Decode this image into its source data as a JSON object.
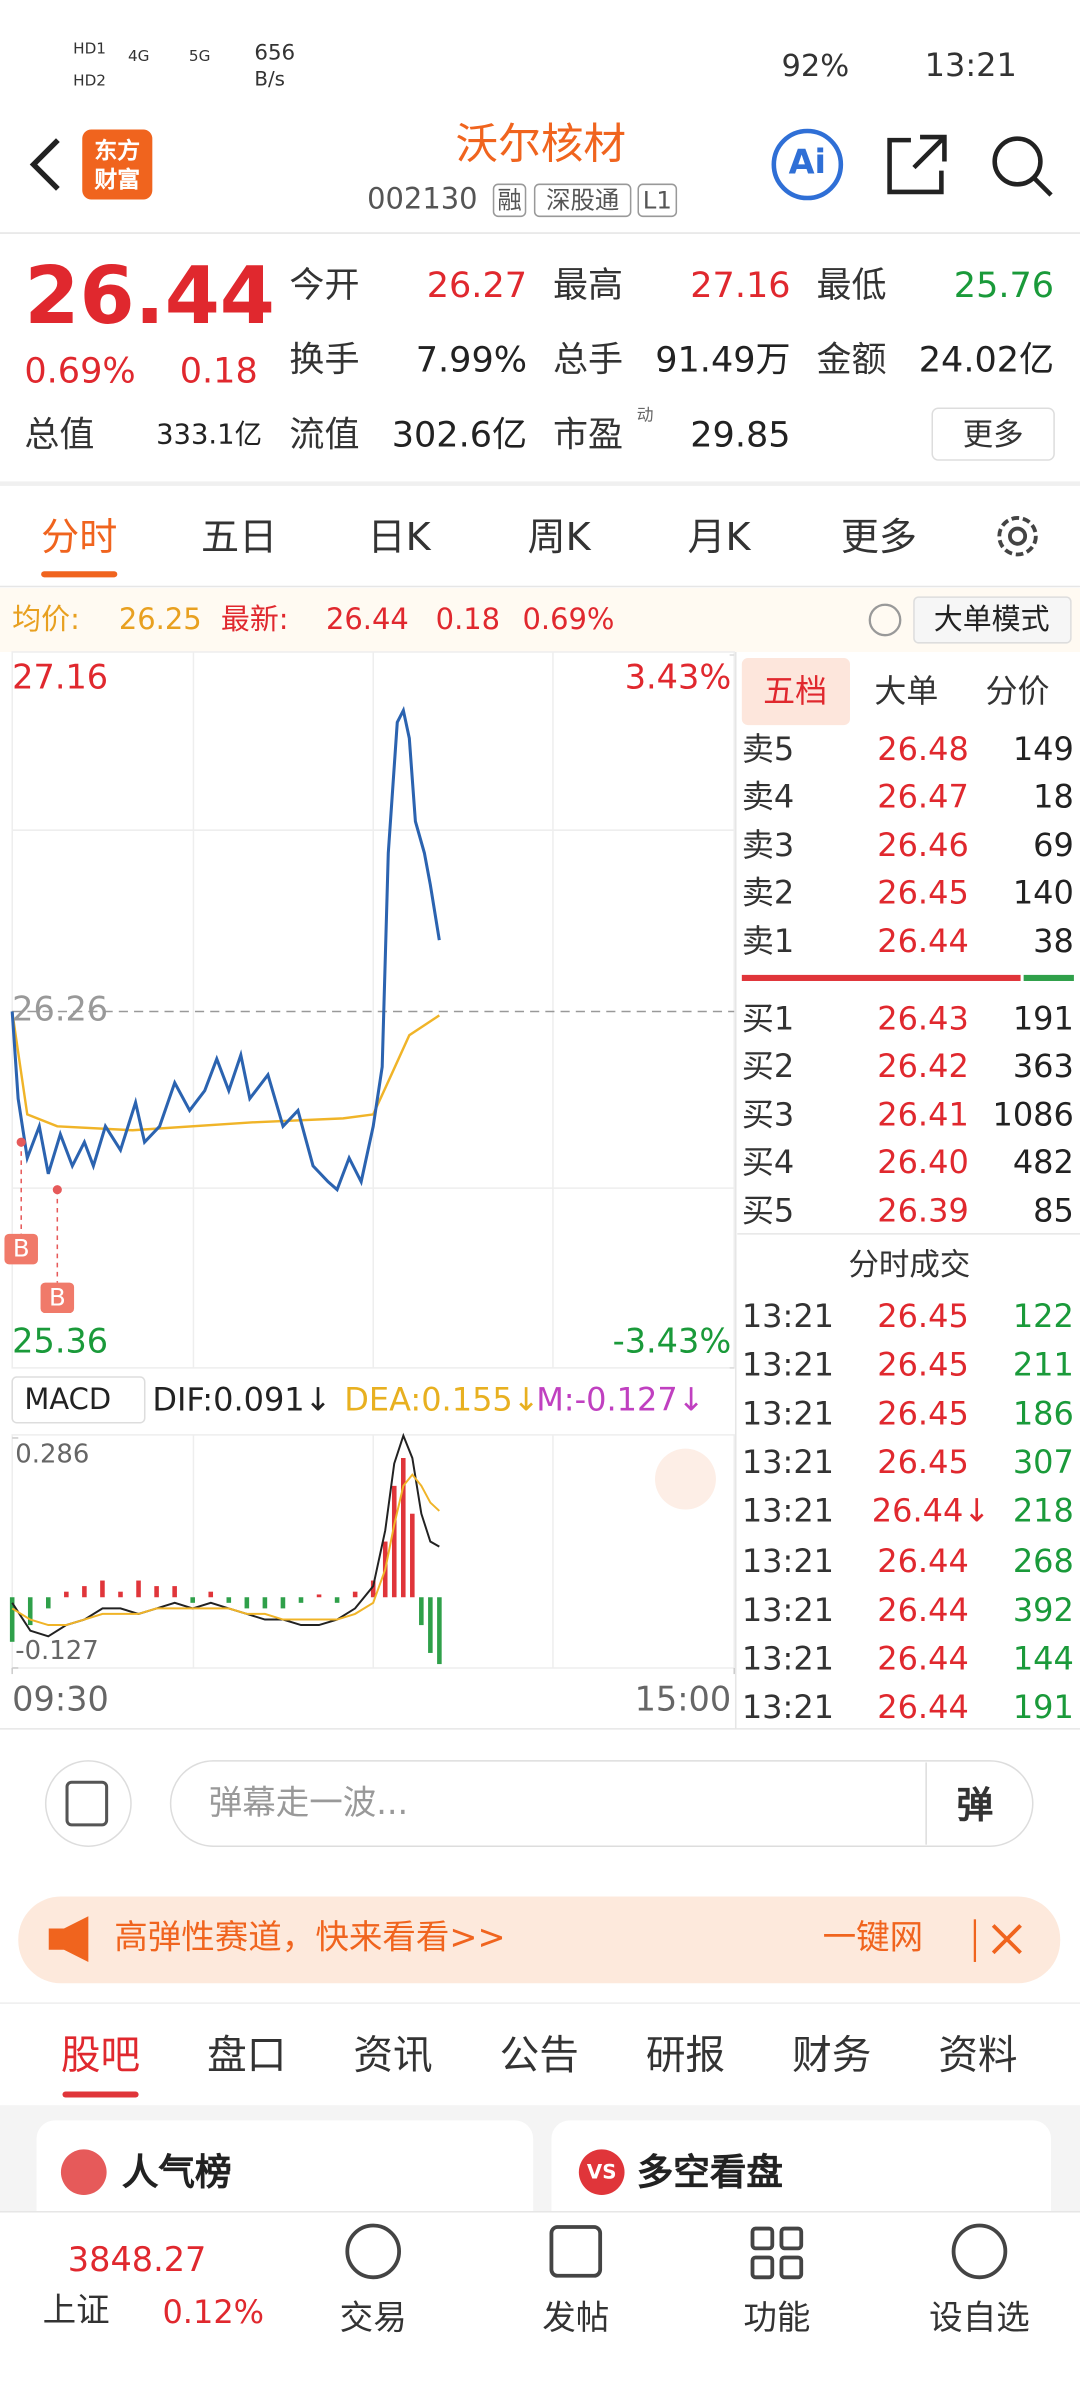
{
  "status_bar": {
    "sim": [
      "HD1",
      "HD2"
    ],
    "net": [
      "4G",
      "5G"
    ],
    "speed": "656",
    "speed_unit": "B/s",
    "battery": "92%",
    "time": "13:21"
  },
  "header": {
    "logo": [
      "东方",
      "财富"
    ],
    "title": "沃尔核材",
    "code": "002130",
    "tags": [
      "融",
      "深股通",
      "L1"
    ],
    "ai": "Ai"
  },
  "quote": {
    "price": "26.44",
    "change_pct": "0.69%",
    "change": "0.18",
    "fields": [
      {
        "label": "今开",
        "value": "26.27"
      },
      {
        "label": "最高",
        "value": "27.16"
      },
      {
        "label": "最低",
        "value": "25.76"
      },
      {
        "label": "换手",
        "value": "7.99%"
      },
      {
        "label": "总手",
        "value": "91.49万"
      },
      {
        "label": "金额",
        "value": "24.02亿"
      },
      {
        "label": "总值",
        "value": "333.1亿"
      },
      {
        "label": "流值",
        "value": "302.6亿"
      },
      {
        "label": "市盈",
        "sup": "动",
        "value": "29.85"
      }
    ],
    "more": "更多"
  },
  "tabs": [
    "分时",
    "五日",
    "日K",
    "周K",
    "月K",
    "更多"
  ],
  "info": {
    "avg_label": "均价:",
    "avg": "26.25",
    "latest_label": "最新:",
    "latest": "26.44",
    "change": "0.18",
    "pct": "0.69%",
    "mode": "大单模式"
  },
  "chart": {
    "xlim": [
      0,
      240
    ],
    "xticks": [
      {
        "value": 0,
        "label": "09:30"
      },
      {
        "value": 240,
        "label": "15:00"
      }
    ],
    "ylim": [
      25.36,
      27.16
    ],
    "yticks": [
      27.16,
      26.26,
      25.36
    ],
    "y2lim": [
      -3.43,
      3.43
    ],
    "y2ticks": [
      {
        "value": 3.43,
        "label": "3.43%"
      },
      {
        "value": -3.43,
        "label": "-3.43%"
      }
    ],
    "price": {
      "color": "#2b63b0",
      "x": [
        0,
        2,
        5,
        9,
        12,
        16,
        20,
        24,
        27,
        31,
        36,
        41,
        44,
        49,
        54,
        59,
        64,
        68,
        72,
        76,
        79,
        85,
        90,
        95,
        100,
        105,
        108,
        112,
        116,
        120,
        123,
        125,
        128,
        130,
        132,
        134,
        137,
        139,
        142
      ],
      "values": [
        26.26,
        26.04,
        25.89,
        25.97,
        25.85,
        25.95,
        25.87,
        25.93,
        25.87,
        25.97,
        25.91,
        26.03,
        25.93,
        25.97,
        26.08,
        26.01,
        26.06,
        26.14,
        26.06,
        26.15,
        26.04,
        26.1,
        25.97,
        26.01,
        25.87,
        25.83,
        25.81,
        25.89,
        25.83,
        25.97,
        26.12,
        26.66,
        26.99,
        27.02,
        26.95,
        26.74,
        26.66,
        26.58,
        26.44
      ]
    },
    "avg": {
      "color": "#f0b428",
      "x": [
        0,
        5,
        15,
        40,
        80,
        110,
        120,
        126,
        132,
        142
      ],
      "values": [
        26.26,
        26.0,
        25.97,
        25.96,
        25.98,
        25.99,
        26.0,
        26.1,
        26.2,
        26.25
      ]
    },
    "buy_markers": [
      {
        "x": 3,
        "value": 25.93,
        "label": "B"
      },
      {
        "x": 15,
        "value": 25.81,
        "label": "B"
      }
    ]
  },
  "macd": {
    "label": "MACD",
    "dif_label": "DIF:0.091↓",
    "dea_label": "DEA:0.155↓",
    "m_label": "M:-0.127↓",
    "ylim": [
      -0.127,
      0.286
    ],
    "yticks": [
      0.286,
      -0.127
    ],
    "x": [
      0,
      6,
      12,
      18,
      24,
      30,
      36,
      42,
      48,
      54,
      60,
      66,
      72,
      78,
      84,
      90,
      96,
      102,
      108,
      114,
      120,
      124,
      127,
      130,
      133,
      136,
      139,
      142
    ],
    "hist": [
      -0.08,
      -0.05,
      -0.02,
      0.01,
      0.02,
      0.03,
      0.01,
      0.03,
      0.02,
      0.02,
      -0.01,
      0.01,
      -0.01,
      -0.02,
      -0.02,
      -0.02,
      -0.01,
      0.005,
      -0.01,
      0.01,
      0.03,
      0.1,
      0.2,
      0.25,
      0.15,
      -0.05,
      -0.1,
      -0.12
    ],
    "dif": [
      -0.01,
      -0.06,
      -0.07,
      -0.05,
      -0.04,
      -0.02,
      -0.02,
      -0.03,
      -0.02,
      -0.01,
      -0.02,
      -0.01,
      -0.02,
      -0.03,
      -0.04,
      -0.04,
      -0.05,
      -0.05,
      -0.04,
      -0.02,
      0.02,
      0.12,
      0.24,
      0.29,
      0.25,
      0.15,
      0.1,
      0.091
    ],
    "dea": [
      -0.02,
      -0.04,
      -0.05,
      -0.05,
      -0.04,
      -0.03,
      -0.03,
      -0.03,
      -0.02,
      -0.02,
      -0.02,
      -0.02,
      -0.02,
      -0.03,
      -0.03,
      -0.04,
      -0.04,
      -0.04,
      -0.04,
      -0.03,
      -0.01,
      0.05,
      0.13,
      0.2,
      0.22,
      0.2,
      0.17,
      0.155
    ]
  },
  "order_book": {
    "tabs": [
      "五档",
      "大单",
      "分价"
    ],
    "sell": [
      [
        "卖5",
        "26.48",
        "149"
      ],
      [
        "卖4",
        "26.47",
        "18"
      ],
      [
        "卖3",
        "26.46",
        "69"
      ],
      [
        "卖2",
        "26.45",
        "140"
      ],
      [
        "卖1",
        "26.44",
        "38"
      ]
    ],
    "buy": [
      [
        "买1",
        "26.43",
        "191"
      ],
      [
        "买2",
        "26.42",
        "363"
      ],
      [
        "买3",
        "26.41",
        "1086"
      ],
      [
        "买4",
        "26.40",
        "482"
      ],
      [
        "买5",
        "26.39",
        "85"
      ]
    ],
    "trades_title": "分时成交",
    "trades": [
      [
        "13:21",
        "26.45",
        "122"
      ],
      [
        "13:21",
        "26.45",
        "211"
      ],
      [
        "13:21",
        "26.45",
        "186"
      ],
      [
        "13:21",
        "26.45",
        "307"
      ],
      [
        "13:21",
        "26.44↓",
        "218"
      ],
      [
        "13:21",
        "26.44",
        "268"
      ],
      [
        "13:21",
        "26.44",
        "392"
      ],
      [
        "13:21",
        "26.44",
        "144"
      ],
      [
        "13:21",
        "26.44",
        "191"
      ]
    ]
  },
  "comment": {
    "placeholder": "弹幕走一波...",
    "button": "弹"
  },
  "banner": {
    "text": "高弹性赛道，快来看看>>",
    "action": "一键网"
  },
  "bottom_tabs": [
    "股吧",
    "盘口",
    "资讯",
    "公告",
    "研报",
    "财务",
    "资料"
  ],
  "cards": [
    {
      "icon": "",
      "title": "人气榜"
    },
    {
      "icon": "VS",
      "title": "多空看盘"
    }
  ],
  "nav": {
    "index_value": "3848.27",
    "index_name": "上证",
    "index_pct": "0.12%",
    "items": [
      "交易",
      "发帖",
      "功能",
      "设自选"
    ]
  }
}
